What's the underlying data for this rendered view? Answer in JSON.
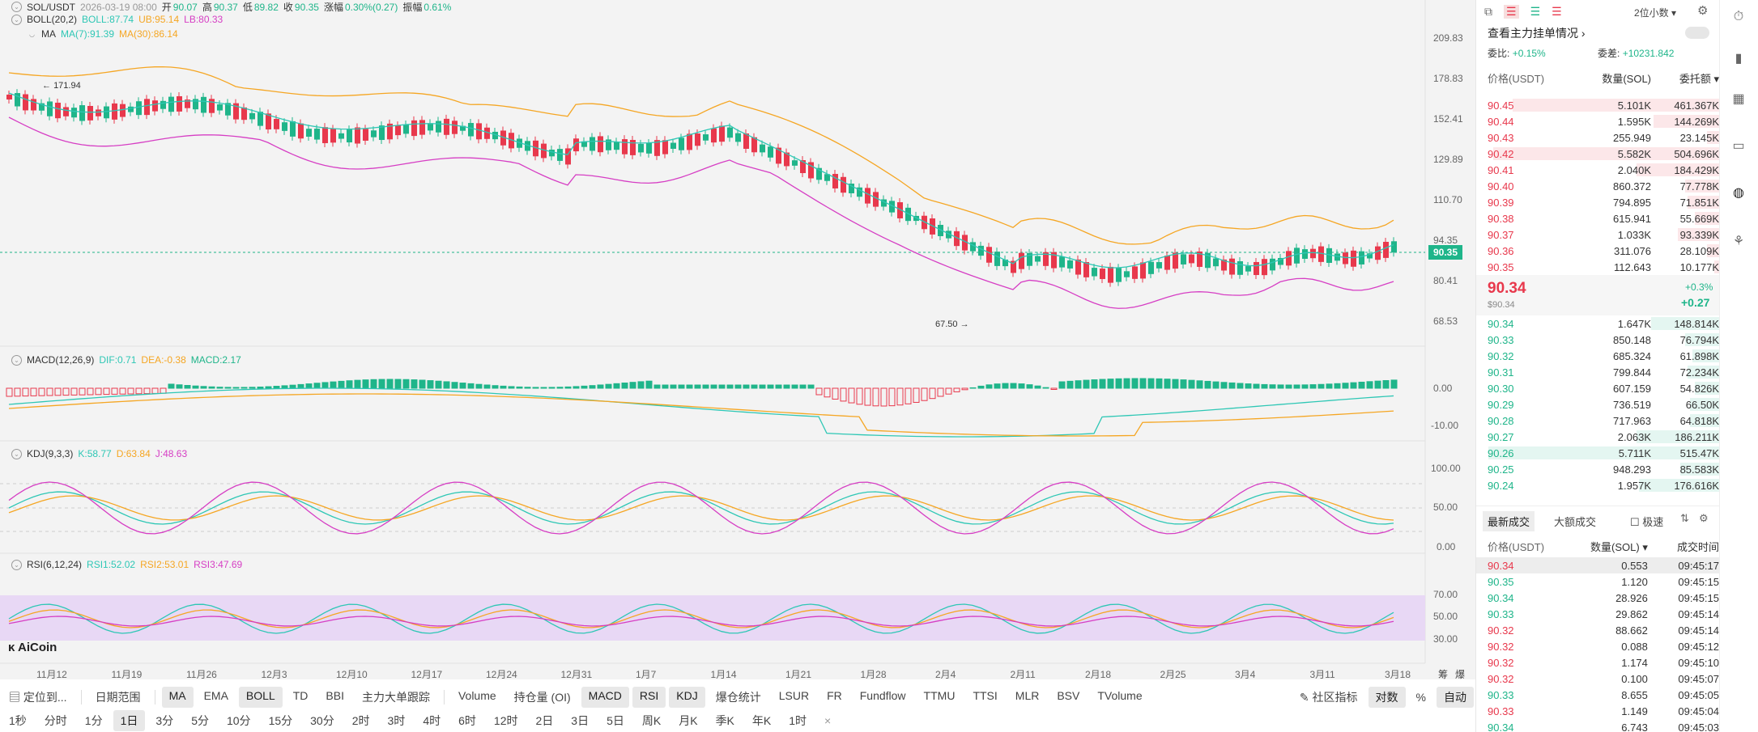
{
  "ticker": {
    "pair": "SOL/USDT",
    "date": "2026-03-19 08:00",
    "open_label": "开",
    "open": "90.07",
    "high_label": "高",
    "high": "90.37",
    "low_label": "低",
    "low": "89.82",
    "close_label": "收",
    "close": "90.35",
    "change_label": "涨幅",
    "change": "0.30%(0.27)",
    "amp_label": "振幅",
    "amp": "0.61%"
  },
  "boll": {
    "name": "BOLL(20,2)",
    "boll": "BOLL:87.74",
    "ub": "UB:95.14",
    "lb": "LB:80.33"
  },
  "ma": {
    "name": "MA",
    "ma7": "MA(7):91.39",
    "ma30": "MA(30):86.14"
  },
  "macd": {
    "name": "MACD(12,26,9)",
    "dif": "DIF:0.71",
    "dea": "DEA:-0.38",
    "macd": "MACD:2.17"
  },
  "kdj": {
    "name": "KDJ(9,3,3)",
    "k": "K:58.77",
    "d": "D:63.84",
    "j": "J:48.63"
  },
  "rsi": {
    "name": "RSI(6,12,24)",
    "r1": "RSI1:52.02",
    "r2": "RSI2:53.01",
    "r3": "RSI3:47.69"
  },
  "price_axis": [
    "209.83",
    "178.83",
    "152.41",
    "129.89",
    "110.70",
    "94.35",
    "80.41",
    "68.53"
  ],
  "current_price_tag": "90.35",
  "high_marker": "171.94",
  "low_marker": "67.50",
  "macd_axis": [
    "0.00",
    "-10.00"
  ],
  "kdj_axis": [
    "100.00",
    "50.00",
    "0.00"
  ],
  "rsi_axis": [
    "70.00",
    "50.00",
    "30.00"
  ],
  "date_axis": [
    "11月12",
    "11月19",
    "11月26",
    "12月3",
    "12月10",
    "12月17",
    "12月24",
    "12月31",
    "1月7",
    "1月14",
    "1月21",
    "1月28",
    "2月4",
    "2月11",
    "2月18",
    "2月25",
    "3月4",
    "3月11",
    "3月18"
  ],
  "axis_right_labels": [
    "筹",
    "爆"
  ],
  "logo": "AiCoin",
  "toolbar1": {
    "locate": "定位到...",
    "date_range": "日期范围",
    "indicators": [
      "MA",
      "EMA",
      "BOLL",
      "TD",
      "BBI",
      "主力大单跟踪"
    ],
    "sub_indicators": [
      "Volume",
      "持仓量 (OI)",
      "MACD",
      "RSI",
      "KDJ",
      "爆仓统计",
      "LSUR",
      "FR",
      "Fundflow",
      "TTMU",
      "TTSI",
      "MLR",
      "BSV",
      "TVolume"
    ],
    "community": "社区指标",
    "log": "对数",
    "percent": "%",
    "auto": "自动"
  },
  "toolbar2": {
    "intervals": [
      "1秒",
      "分时",
      "1分",
      "1日",
      "3分",
      "5分",
      "10分",
      "15分",
      "30分",
      "2时",
      "3时",
      "4时",
      "6时",
      "12时",
      "2日",
      "3日",
      "5日",
      "周K",
      "月K",
      "季K",
      "年K",
      "1时"
    ],
    "close": "×"
  },
  "orderbook": {
    "precision": "2位小数",
    "main_orders_link": "查看主力挂单情况 ›",
    "ratio_label": "委比:",
    "ratio": "+0.15%",
    "diff_label": "委差:",
    "diff": "+10231.842",
    "col_price": "价格(USDT)",
    "col_qty": "数量(SOL)",
    "col_total": "委托额",
    "asks": [
      {
        "p": "90.45",
        "q": "5.101K",
        "t": "461.367K",
        "w": 0.85
      },
      {
        "p": "90.44",
        "q": "1.595K",
        "t": "144.269K",
        "w": 0.27
      },
      {
        "p": "90.43",
        "q": "255.949",
        "t": "23.145K",
        "w": 0.05
      },
      {
        "p": "90.42",
        "q": "5.582K",
        "t": "504.696K",
        "w": 0.93
      },
      {
        "p": "90.41",
        "q": "2.040K",
        "t": "184.429K",
        "w": 0.34
      },
      {
        "p": "90.40",
        "q": "860.372",
        "t": "77.778K",
        "w": 0.14
      },
      {
        "p": "90.39",
        "q": "794.895",
        "t": "71.851K",
        "w": 0.13
      },
      {
        "p": "90.38",
        "q": "615.941",
        "t": "55.669K",
        "w": 0.1
      },
      {
        "p": "90.37",
        "q": "1.033K",
        "t": "93.339K",
        "w": 0.17
      },
      {
        "p": "90.36",
        "q": "311.076",
        "t": "28.109K",
        "w": 0.05
      },
      {
        "p": "90.35",
        "q": "112.643",
        "t": "10.177K",
        "w": 0.02
      }
    ],
    "last_price": "90.34",
    "last_usd": "$90.34",
    "last_pct": "+0.3%",
    "last_change": "+0.27",
    "bids": [
      {
        "p": "90.34",
        "q": "1.647K",
        "t": "148.814K",
        "w": 0.28
      },
      {
        "p": "90.33",
        "q": "850.148",
        "t": "76.794K",
        "w": 0.14
      },
      {
        "p": "90.32",
        "q": "685.324",
        "t": "61.898K",
        "w": 0.11
      },
      {
        "p": "90.31",
        "q": "799.844",
        "t": "72.234K",
        "w": 0.13
      },
      {
        "p": "90.30",
        "q": "607.159",
        "t": "54.826K",
        "w": 0.1
      },
      {
        "p": "90.29",
        "q": "736.519",
        "t": "66.50K",
        "w": 0.12
      },
      {
        "p": "90.28",
        "q": "717.963",
        "t": "64.818K",
        "w": 0.12
      },
      {
        "p": "90.27",
        "q": "2.063K",
        "t": "186.211K",
        "w": 0.34
      },
      {
        "p": "90.26",
        "q": "5.711K",
        "t": "515.47K",
        "w": 0.95
      },
      {
        "p": "90.25",
        "q": "948.293",
        "t": "85.583K",
        "w": 0.16
      },
      {
        "p": "90.24",
        "q": "1.957K",
        "t": "176.616K",
        "w": 0.33
      }
    ]
  },
  "trades": {
    "tab_latest": "最新成交",
    "tab_large": "大额成交",
    "fast_label": "极速",
    "col_price": "价格(USDT)",
    "col_qty": "数量(SOL)",
    "col_time": "成交时间",
    "rows": [
      {
        "p": "90.34",
        "q": "0.553",
        "t": "09:45:17",
        "side": "sell"
      },
      {
        "p": "90.35",
        "q": "1.120",
        "t": "09:45:15",
        "side": "buy"
      },
      {
        "p": "90.34",
        "q": "28.926",
        "t": "09:45:15",
        "side": "buy"
      },
      {
        "p": "90.33",
        "q": "29.862",
        "t": "09:45:14",
        "side": "buy"
      },
      {
        "p": "90.32",
        "q": "88.662",
        "t": "09:45:14",
        "side": "sell"
      },
      {
        "p": "90.32",
        "q": "0.088",
        "t": "09:45:12",
        "side": "sell"
      },
      {
        "p": "90.32",
        "q": "1.174",
        "t": "09:45:10",
        "side": "sell"
      },
      {
        "p": "90.32",
        "q": "0.100",
        "t": "09:45:07",
        "side": "sell"
      },
      {
        "p": "90.33",
        "q": "8.655",
        "t": "09:45:05",
        "side": "buy"
      },
      {
        "p": "90.33",
        "q": "1.149",
        "t": "09:45:04",
        "side": "sell"
      },
      {
        "p": "90.34",
        "q": "6.743",
        "t": "09:45:03",
        "side": "buy"
      }
    ]
  },
  "colors": {
    "up": "#1fb58a",
    "down": "#e8384c",
    "boll_mid": "#2ec7b5",
    "boll_up": "#f5a623",
    "boll_low": "#d63ec4"
  },
  "icons": [
    "layout-icon",
    "orderbook-both-icon",
    "orderbook-bids-icon",
    "orderbook-asks-icon",
    "settings-icon",
    "chart-icon",
    "card-icon",
    "robot-icon",
    "share-icon",
    "clock-icon",
    "candle-icon"
  ]
}
